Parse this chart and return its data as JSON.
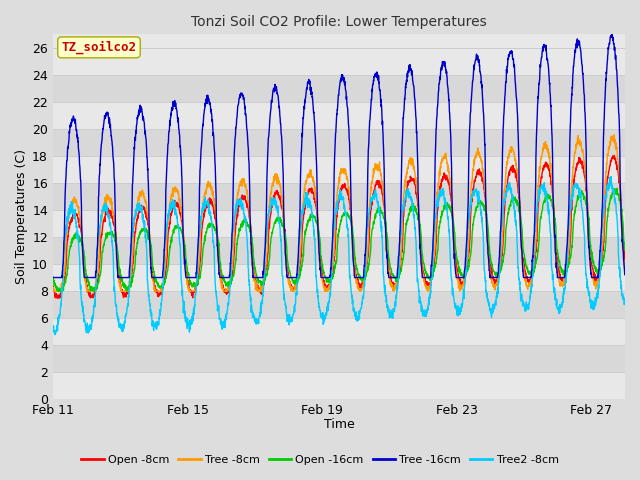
{
  "title": "Tonzi Soil CO2 Profile: Lower Temperatures",
  "xlabel": "Time",
  "ylabel": "Soil Temperatures (C)",
  "ylim": [
    0,
    27
  ],
  "yticks": [
    0,
    2,
    4,
    6,
    8,
    10,
    12,
    14,
    16,
    18,
    20,
    22,
    24,
    26
  ],
  "xlim_start": 0,
  "xlim_end": 17,
  "xtick_positions": [
    0,
    4,
    8,
    12,
    16
  ],
  "xtick_labels": [
    "Feb 11",
    "Feb 15",
    "Feb 19",
    "Feb 23",
    "Feb 27"
  ],
  "watermark_text": "TZ_soilco2",
  "watermark_bg": "#ffffcc",
  "watermark_fg": "#cc0000",
  "legend_labels": [
    "Open -8cm",
    "Tree -8cm",
    "Open -16cm",
    "Tree -16cm",
    "Tree2 -8cm"
  ],
  "legend_colors": [
    "#ff0000",
    "#ff9900",
    "#00cc00",
    "#0000cc",
    "#00ccff"
  ],
  "bg_color": "#dddddd",
  "plot_bg_light": "#e8e8e8",
  "plot_bg_dark": "#d8d8d8",
  "grid_color": "#cccccc",
  "line_width": 1.0,
  "n_days": 17,
  "points_per_day": 144
}
